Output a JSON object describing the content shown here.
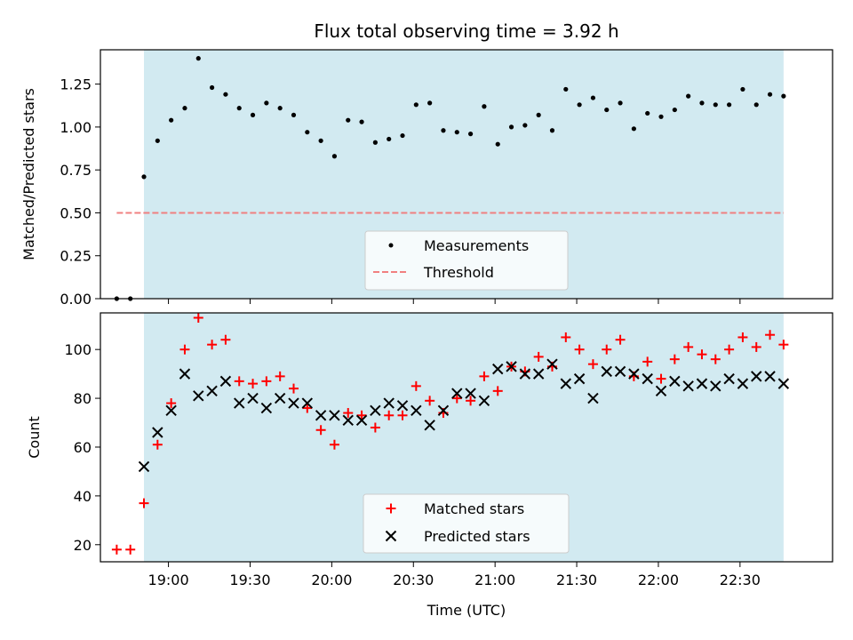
{
  "chart_data": [
    {
      "type": "scatter",
      "title": "Flux total observing time = 3.92 h",
      "xlabel": "",
      "ylabel": "Matched/Predicted stars",
      "x_unit": "UTC",
      "xlim": [
        "18:35",
        "23:04"
      ],
      "ylim": [
        0,
        1.45
      ],
      "yticks": [
        0.0,
        0.25,
        0.5,
        0.75,
        1.0,
        1.25
      ],
      "ytick_labels": [
        "0.00",
        "0.25",
        "0.50",
        "0.75",
        "1.00",
        "1.25"
      ],
      "shaded_interval": [
        "18:51",
        "22:46"
      ],
      "shaded_color": "#add8e6",
      "legend_placement": "lower-center",
      "series": [
        {
          "name": "Measurements",
          "marker": "dot",
          "color": "#000000",
          "points": [
            [
              "18:41",
              0.0
            ],
            [
              "18:46",
              0.0
            ],
            [
              "18:51",
              0.71
            ],
            [
              "18:56",
              0.92
            ],
            [
              "19:01",
              1.04
            ],
            [
              "19:06",
              1.11
            ],
            [
              "19:11",
              1.4
            ],
            [
              "19:16",
              1.23
            ],
            [
              "19:21",
              1.19
            ],
            [
              "19:26",
              1.11
            ],
            [
              "19:31",
              1.07
            ],
            [
              "19:36",
              1.14
            ],
            [
              "19:41",
              1.11
            ],
            [
              "19:46",
              1.07
            ],
            [
              "19:51",
              0.97
            ],
            [
              "19:56",
              0.92
            ],
            [
              "20:01",
              0.83
            ],
            [
              "20:06",
              1.04
            ],
            [
              "20:11",
              1.03
            ],
            [
              "20:16",
              0.91
            ],
            [
              "20:21",
              0.93
            ],
            [
              "20:26",
              0.95
            ],
            [
              "20:31",
              1.13
            ],
            [
              "20:36",
              1.14
            ],
            [
              "20:41",
              0.98
            ],
            [
              "20:46",
              0.97
            ],
            [
              "20:51",
              0.96
            ],
            [
              "20:56",
              1.12
            ],
            [
              "21:01",
              0.9
            ],
            [
              "21:06",
              1.0
            ],
            [
              "21:11",
              1.01
            ],
            [
              "21:16",
              1.07
            ],
            [
              "21:21",
              0.98
            ],
            [
              "21:26",
              1.22
            ],
            [
              "21:31",
              1.13
            ],
            [
              "21:36",
              1.17
            ],
            [
              "21:41",
              1.1
            ],
            [
              "21:46",
              1.14
            ],
            [
              "21:51",
              0.99
            ],
            [
              "21:56",
              1.08
            ],
            [
              "22:01",
              1.06
            ],
            [
              "22:06",
              1.1
            ],
            [
              "22:11",
              1.18
            ],
            [
              "22:16",
              1.14
            ],
            [
              "22:21",
              1.13
            ],
            [
              "22:26",
              1.13
            ],
            [
              "22:31",
              1.22
            ],
            [
              "22:36",
              1.13
            ],
            [
              "22:41",
              1.19
            ],
            [
              "22:46",
              1.18
            ]
          ]
        },
        {
          "name": "Threshold",
          "line_style": "dashed",
          "color": "#f08080",
          "points": [
            [
              "18:41",
              0.5
            ],
            [
              "22:46",
              0.5
            ]
          ]
        }
      ]
    },
    {
      "type": "scatter",
      "title": "",
      "xlabel": "Time (UTC)",
      "ylabel": "Count",
      "xlim": [
        "18:35",
        "23:04"
      ],
      "xticks": [
        "19:00",
        "19:30",
        "20:00",
        "20:30",
        "21:00",
        "21:30",
        "22:00",
        "22:30"
      ],
      "ylim": [
        13,
        115
      ],
      "yticks": [
        20,
        40,
        60,
        80,
        100
      ],
      "ytick_labels": [
        "20",
        "40",
        "60",
        "80",
        "100"
      ],
      "shaded_interval": [
        "18:51",
        "22:46"
      ],
      "shaded_color": "#add8e6",
      "legend_placement": "lower-center",
      "x": [
        "18:41",
        "18:46",
        "18:51",
        "18:56",
        "19:01",
        "19:06",
        "19:11",
        "19:16",
        "19:21",
        "19:26",
        "19:31",
        "19:36",
        "19:41",
        "19:46",
        "19:51",
        "19:56",
        "20:01",
        "20:06",
        "20:11",
        "20:16",
        "20:21",
        "20:26",
        "20:31",
        "20:36",
        "20:41",
        "20:46",
        "20:51",
        "20:56",
        "21:01",
        "21:06",
        "21:11",
        "21:16",
        "21:21",
        "21:26",
        "21:31",
        "21:36",
        "21:41",
        "21:46",
        "21:51",
        "21:56",
        "22:01",
        "22:06",
        "22:11",
        "22:16",
        "22:21",
        "22:26",
        "22:31",
        "22:36",
        "22:41",
        "22:46"
      ],
      "series": [
        {
          "name": "Matched stars",
          "marker": "plus",
          "color": "#ff0000",
          "values": [
            18,
            18,
            37,
            61,
            78,
            100,
            113,
            102,
            104,
            87,
            86,
            87,
            89,
            84,
            76,
            67,
            61,
            74,
            73,
            68,
            73,
            73,
            85,
            79,
            74,
            80,
            79,
            89,
            83,
            93,
            91,
            97,
            93,
            105,
            100,
            94,
            100,
            104,
            89,
            95,
            88,
            96,
            101,
            98,
            96,
            100,
            105,
            101,
            106,
            102
          ]
        },
        {
          "name": "Predicted stars",
          "marker": "x",
          "color": "#000000",
          "values": [
            null,
            null,
            52,
            66,
            75,
            90,
            81,
            83,
            87,
            78,
            80,
            76,
            80,
            78,
            78,
            73,
            73,
            71,
            71,
            75,
            78,
            77,
            75,
            69,
            75,
            82,
            82,
            79,
            92,
            93,
            90,
            90,
            94,
            86,
            88,
            80,
            91,
            91,
            90,
            88,
            83,
            87,
            85,
            86,
            85,
            88,
            86,
            89,
            89,
            86
          ]
        }
      ]
    }
  ]
}
